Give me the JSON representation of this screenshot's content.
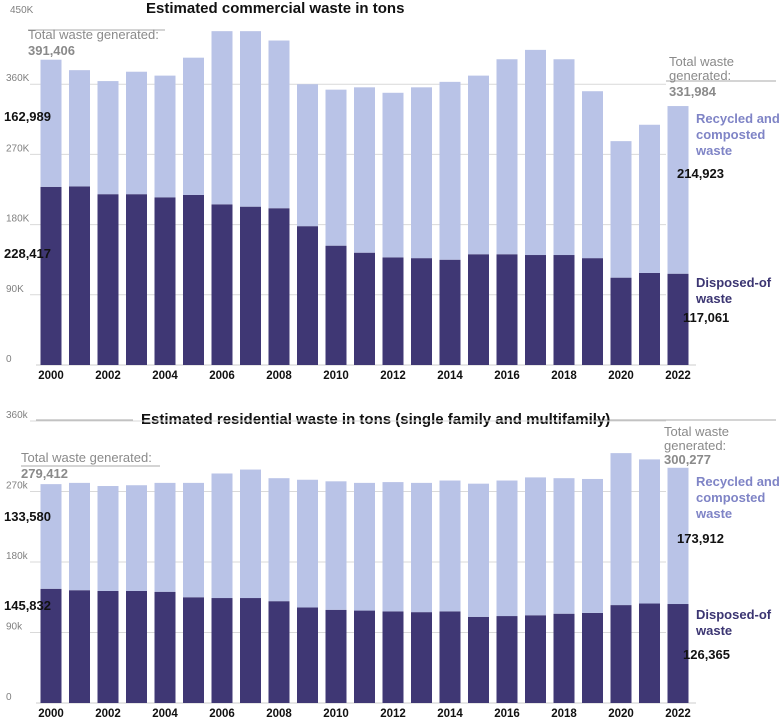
{
  "colors": {
    "disposed": "#3f3774",
    "recycled": "#b9c3e7",
    "axis": "#808080",
    "grid": "#d9d9d9"
  },
  "chart_data": [
    {
      "type": "bar",
      "stacked": true,
      "title": "Estimated commercial waste in tons",
      "ylim": [
        0,
        450000
      ],
      "yticks": [
        "0",
        "90K",
        "180K",
        "270K",
        "360K",
        "450K"
      ],
      "x": [
        2000,
        2001,
        2002,
        2003,
        2004,
        2005,
        2006,
        2007,
        2008,
        2009,
        2010,
        2011,
        2012,
        2013,
        2014,
        2015,
        2016,
        2017,
        2018,
        2019,
        2020,
        2021,
        2022
      ],
      "xtick_labels": [
        "2000",
        "2002",
        "2004",
        "2006",
        "2008",
        "2010",
        "2012",
        "2014",
        "2016",
        "2018",
        "2020",
        "2022"
      ],
      "series": [
        {
          "name": "Disposed-of waste",
          "values": [
            228417,
            229000,
            219000,
            219000,
            215000,
            218000,
            206000,
            203000,
            201000,
            178000,
            153000,
            144000,
            138000,
            137000,
            135000,
            142000,
            142000,
            141000,
            141000,
            137000,
            112000,
            118000,
            117061
          ]
        },
        {
          "name": "Recycled and composted waste",
          "values": [
            162989,
            149000,
            145000,
            157000,
            156000,
            176000,
            222000,
            225000,
            215000,
            182000,
            200000,
            212000,
            211000,
            219000,
            228000,
            229000,
            250000,
            263000,
            251000,
            214000,
            175000,
            190000,
            214923
          ]
        }
      ],
      "annotations": {
        "total_start_label": "Total waste generated:",
        "total_start_value": "391,406",
        "total_end_label_1": "Total waste",
        "total_end_label_2": "generated:",
        "total_end_value": "331,984",
        "recycled_start": "162,989",
        "disposed_start": "228,417",
        "recycled_end": "214,923",
        "disposed_end": "117,061"
      },
      "legend": {
        "recycled_1": "Recycled and",
        "recycled_2": "composted",
        "recycled_3": "waste",
        "disposed_1": "Disposed-of",
        "disposed_2": "waste"
      }
    },
    {
      "type": "bar",
      "stacked": true,
      "title": "Estimated residential waste in tons (single family and multifamily)",
      "ylim": [
        0,
        360000
      ],
      "yticks": [
        "0",
        "90k",
        "180k",
        "270k",
        "360k"
      ],
      "x": [
        2000,
        2001,
        2002,
        2003,
        2004,
        2005,
        2006,
        2007,
        2008,
        2009,
        2010,
        2011,
        2012,
        2013,
        2014,
        2015,
        2016,
        2017,
        2018,
        2019,
        2020,
        2021,
        2022
      ],
      "xtick_labels": [
        "2000",
        "2002",
        "2004",
        "2006",
        "2008",
        "2010",
        "2012",
        "2014",
        "2016",
        "2018",
        "2020",
        "2022"
      ],
      "series": [
        {
          "name": "Disposed-of waste",
          "values": [
            145832,
            144000,
            143000,
            143000,
            142000,
            135000,
            134000,
            134000,
            130000,
            122000,
            119000,
            118000,
            117000,
            116000,
            117000,
            110000,
            111000,
            112000,
            114000,
            115000,
            125000,
            127000,
            126365
          ]
        },
        {
          "name": "Recycled and composted waste",
          "values": [
            133580,
            137000,
            134000,
            135000,
            139000,
            146000,
            159000,
            164000,
            157000,
            163000,
            164000,
            163000,
            165000,
            165000,
            167000,
            170000,
            173000,
            176000,
            173000,
            171000,
            194000,
            184000,
            173912
          ]
        }
      ],
      "annotations": {
        "total_start_label": "Total waste generated:",
        "total_start_value": "279,412",
        "total_end_label_1": "Total waste",
        "total_end_label_2": "generated:",
        "total_end_value": "300,277",
        "recycled_start": "133,580",
        "disposed_start": "145,832",
        "recycled_end": "173,912",
        "disposed_end": "126,365"
      },
      "legend": {
        "recycled_1": "Recycled and",
        "recycled_2": "composted",
        "recycled_3": "waste",
        "disposed_1": "Disposed-of",
        "disposed_2": "waste"
      }
    }
  ]
}
